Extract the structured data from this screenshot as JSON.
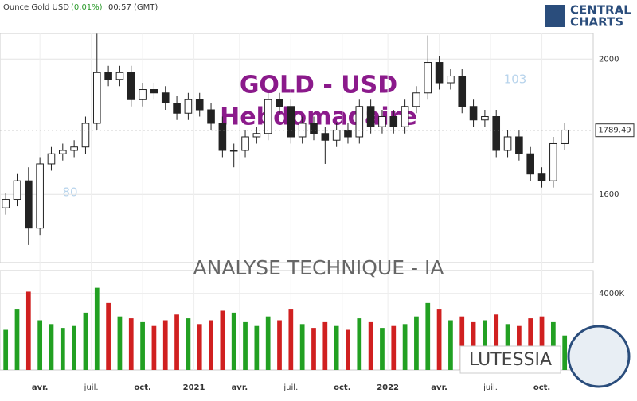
{
  "header": {
    "instrument": "Ounce Gold USD",
    "change": "(0.01%)",
    "time": "00:57 (GMT)"
  },
  "logo": {
    "line1": "CENTRAL",
    "line2": "CHARTS"
  },
  "banner": "ANALYSE TECHNIQUE - IA",
  "brand": "LUTESSIA",
  "chart_data": {
    "type": "candlestick",
    "title": "GOLD - USD",
    "subtitle": "Hebdomadaire",
    "open": [
      1560,
      1585,
      1640,
      1500,
      1690,
      1720,
      1730,
      1740,
      1810,
      1960,
      1940,
      1960,
      1880,
      1910,
      1900,
      1870,
      1840,
      1880,
      1850,
      1810,
      1730,
      1730,
      1770,
      1780,
      1880,
      1860,
      1770,
      1810,
      1780,
      1760,
      1790,
      1770,
      1860,
      1800,
      1830,
      1800,
      1860,
      1900,
      1990,
      1930,
      1950,
      1860,
      1820,
      1830,
      1730,
      1770,
      1720,
      1660,
      1640,
      1750
    ],
    "high": [
      1605,
      1660,
      1680,
      1710,
      1740,
      1750,
      1760,
      1830,
      2075,
      1980,
      1980,
      1980,
      1930,
      1930,
      1920,
      1890,
      1900,
      1900,
      1870,
      1830,
      1750,
      1790,
      1800,
      1900,
      1900,
      1880,
      1830,
      1830,
      1800,
      1810,
      1810,
      1880,
      1880,
      1850,
      1850,
      1880,
      1920,
      2070,
      2010,
      1970,
      1970,
      1880,
      1850,
      1850,
      1790,
      1790,
      1740,
      1680,
      1770,
      1810
    ],
    "low": [
      1540,
      1565,
      1450,
      1480,
      1670,
      1700,
      1710,
      1720,
      1790,
      1920,
      1920,
      1860,
      1860,
      1880,
      1850,
      1820,
      1820,
      1830,
      1790,
      1710,
      1680,
      1710,
      1750,
      1760,
      1840,
      1750,
      1750,
      1760,
      1690,
      1740,
      1750,
      1750,
      1780,
      1780,
      1780,
      1780,
      1840,
      1880,
      1910,
      1910,
      1840,
      1800,
      1800,
      1710,
      1710,
      1700,
      1640,
      1620,
      1620,
      1730
    ],
    "close": [
      1585,
      1640,
      1500,
      1690,
      1720,
      1730,
      1740,
      1810,
      1960,
      1940,
      1960,
      1880,
      1910,
      1900,
      1870,
      1840,
      1880,
      1850,
      1810,
      1730,
      1730,
      1770,
      1780,
      1880,
      1860,
      1770,
      1810,
      1780,
      1760,
      1790,
      1770,
      1860,
      1800,
      1830,
      1800,
      1860,
      1900,
      1990,
      1930,
      1950,
      1860,
      1820,
      1830,
      1730,
      1770,
      1720,
      1660,
      1640,
      1750,
      1790
    ],
    "up_color": "#22a022",
    "down_color": "#d02020",
    "ylim": [
      1398,
      2076
    ],
    "yticks": [
      1600,
      2000
    ],
    "last_price": 1789.49,
    "xlim": [
      -0.5,
      51.5
    ],
    "xticks": [
      {
        "value": 3,
        "label": "avr."
      },
      {
        "value": 7.5,
        "label": "juil."
      },
      {
        "value": 12,
        "label": "oct."
      },
      {
        "value": 16.5,
        "label": "2021"
      },
      {
        "value": 20.5,
        "label": "avr."
      },
      {
        "value": 25,
        "label": "juil."
      },
      {
        "value": 29.5,
        "label": "oct."
      },
      {
        "value": 33.5,
        "label": "2022"
      },
      {
        "value": 38,
        "label": "avr."
      },
      {
        "value": 42.5,
        "label": "juil."
      },
      {
        "value": 47,
        "label": "oct."
      }
    ],
    "volume": {
      "values": [
        2100,
        3200,
        4100,
        2600,
        2400,
        2200,
        2300,
        3000,
        4300,
        3500,
        2800,
        2700,
        2500,
        2300,
        2600,
        2900,
        2700,
        2400,
        2600,
        3100,
        3000,
        2500,
        2300,
        2800,
        2600,
        3200,
        2400,
        2200,
        2500,
        2300,
        2100,
        2700,
        2500,
        2200,
        2300,
        2400,
        2800,
        3500,
        3200,
        2600,
        2800,
        2500,
        2600,
        2900,
        2400,
        2300,
        2700,
        2800,
        2500,
        1800
      ],
      "ylim": [
        0,
        5200
      ],
      "yticks": [
        {
          "value": 4000,
          "label": "4000K"
        }
      ]
    },
    "annotations": [
      "80",
      "103"
    ]
  }
}
